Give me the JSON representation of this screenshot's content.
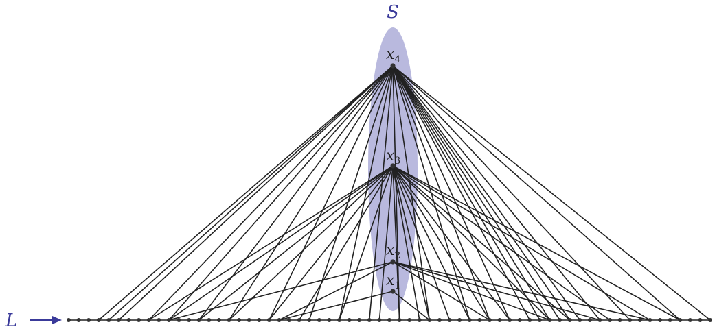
{
  "set_label": "S",
  "line_label": "L",
  "colors": {
    "set_fill": "#b9b9de",
    "arrow": "#3a3a9a",
    "edge": "#222222",
    "node": "#333333"
  },
  "top_vertices": [
    {
      "name": "x",
      "sub": "4"
    },
    {
      "name": "x",
      "sub": "3"
    },
    {
      "name": "x",
      "sub": "2"
    },
    {
      "name": "x",
      "sub": "1"
    }
  ],
  "bottom_vertex_count": 65,
  "connections": [
    [
      3,
      4,
      5,
      8,
      10,
      13,
      16,
      20,
      24,
      27,
      30,
      33,
      36,
      40,
      42,
      44,
      46,
      47,
      48,
      49,
      50,
      51,
      53,
      56,
      61,
      64
    ],
    [
      8,
      10,
      13,
      16,
      20,
      23,
      27,
      31,
      33,
      35,
      36,
      38,
      40,
      42,
      44,
      48,
      50,
      54,
      58,
      61
    ],
    [
      10,
      21,
      42,
      48,
      53,
      58
    ],
    [
      21,
      36
    ]
  ]
}
